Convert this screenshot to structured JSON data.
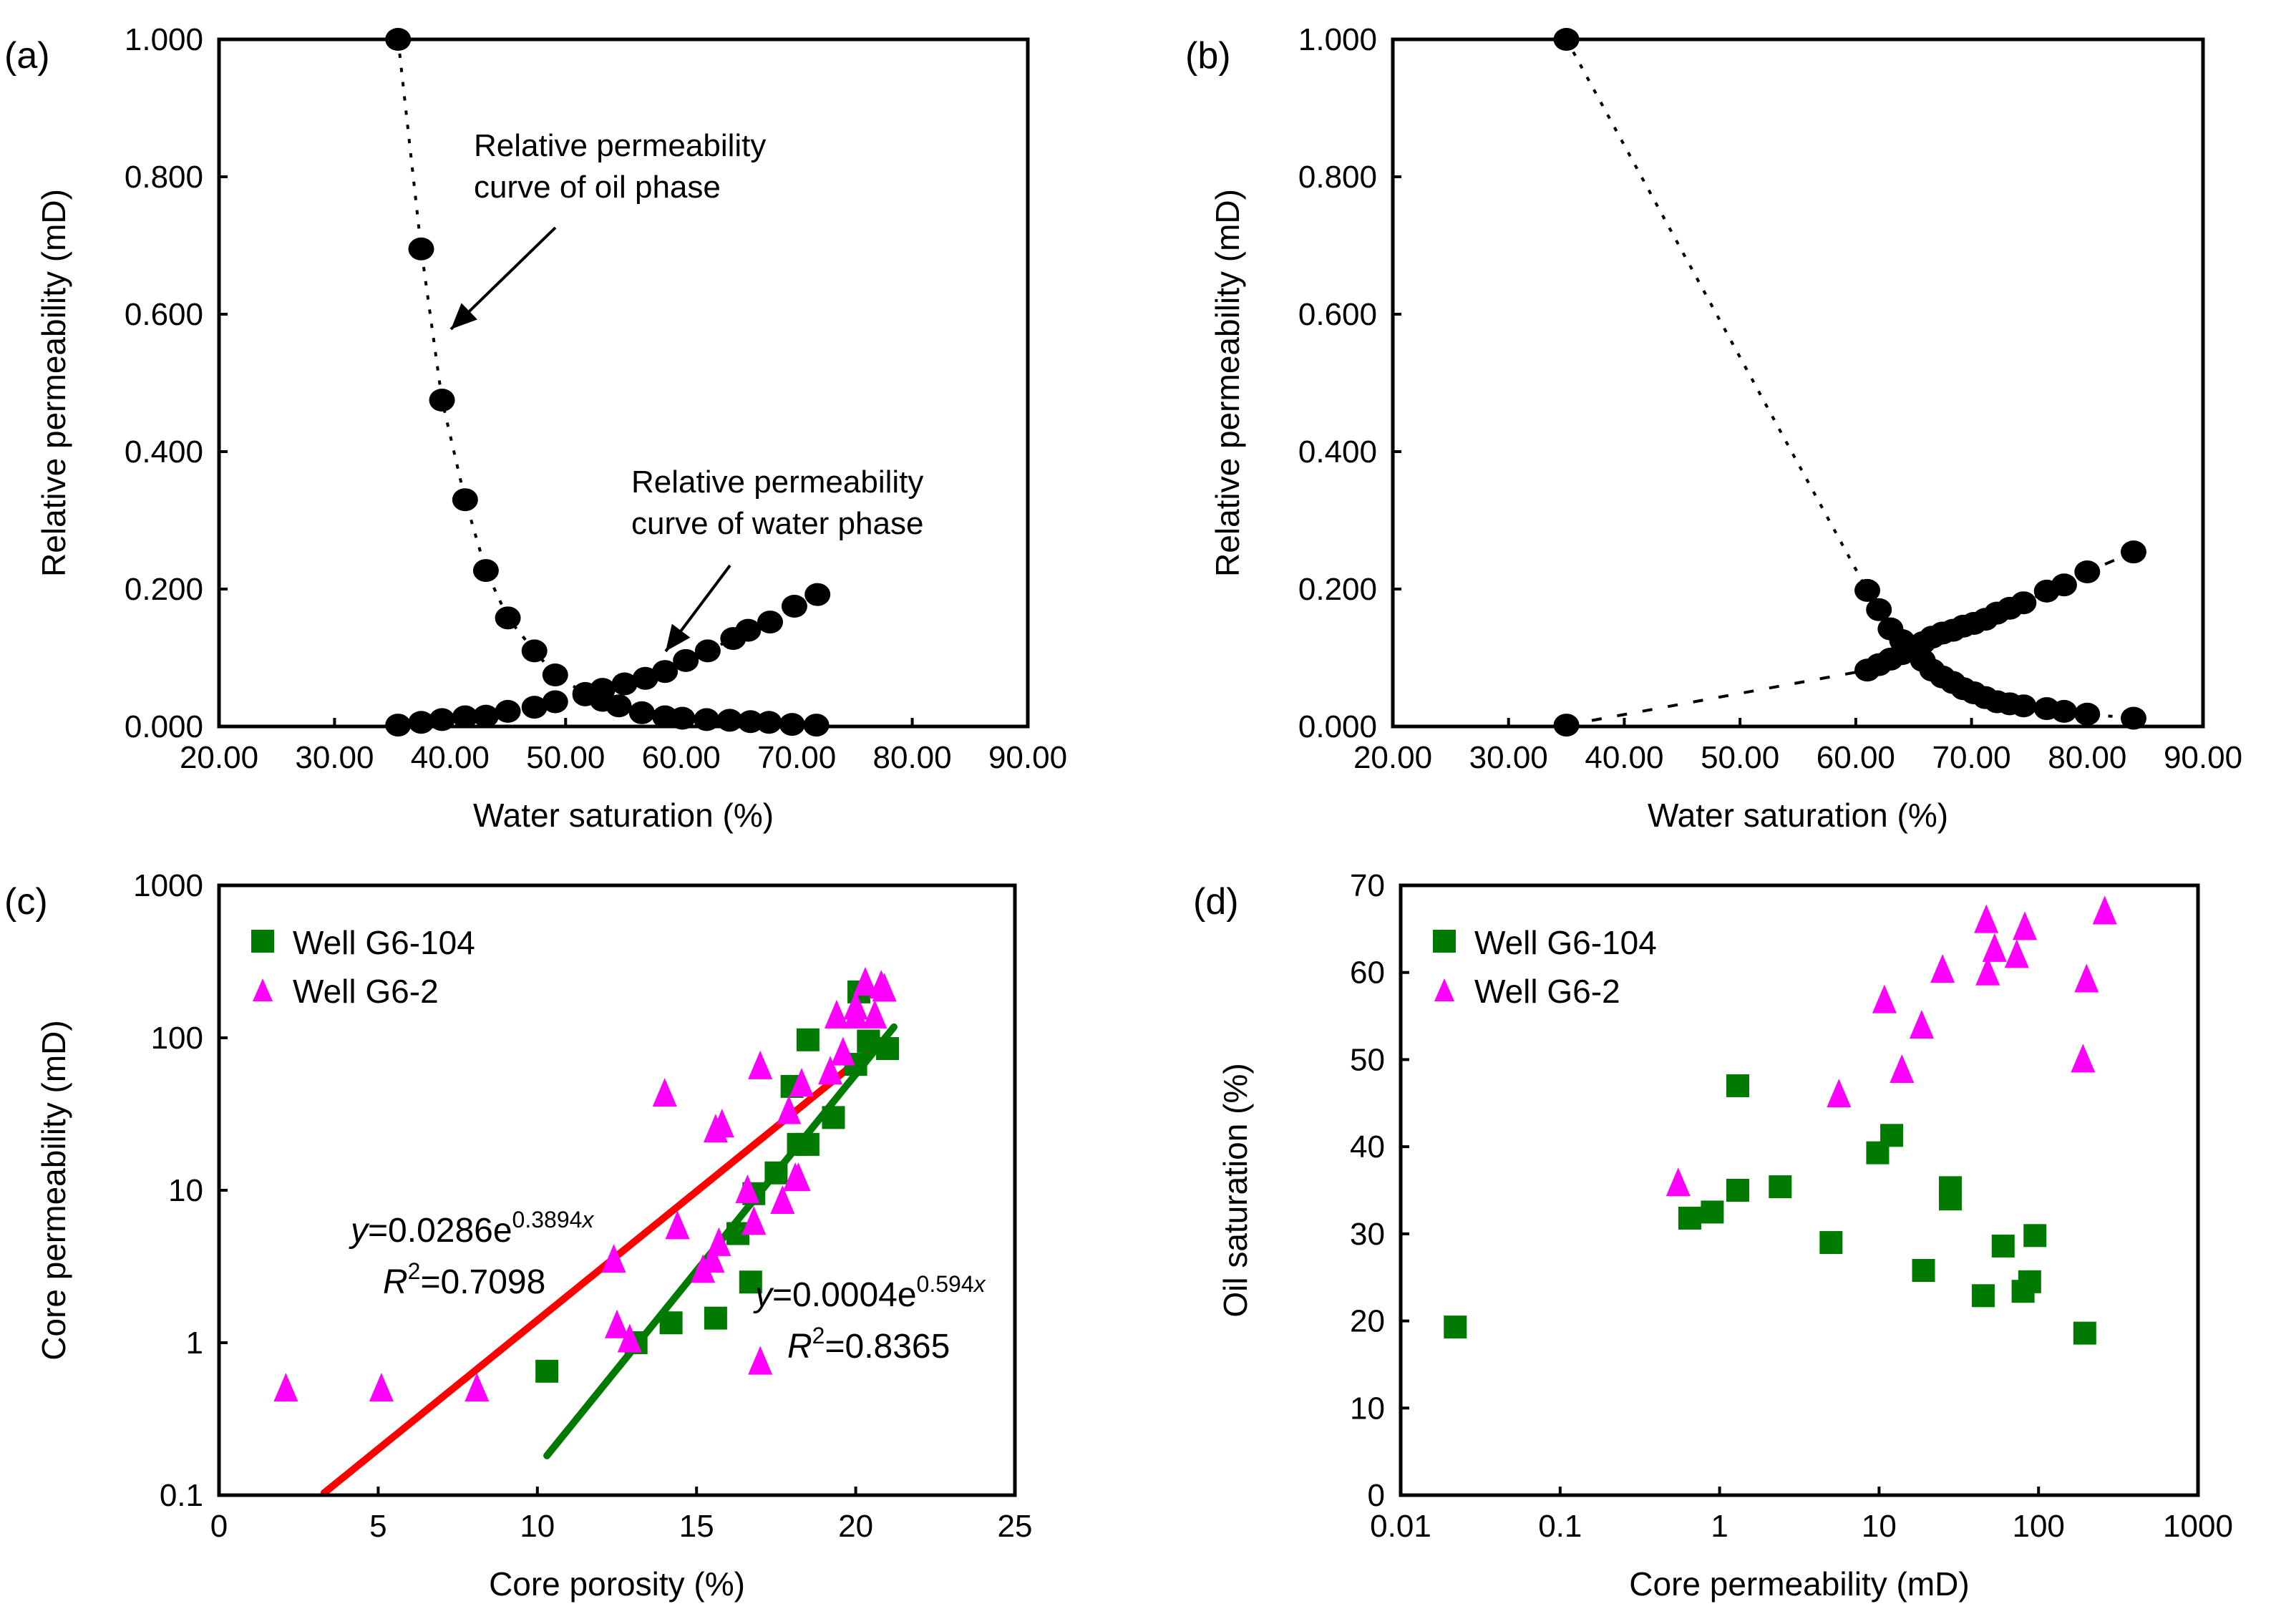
{
  "chart_data": [
    {
      "panel": "(a)",
      "type": "line",
      "xlabel": "Water saturation (%)",
      "ylabel": "Relative permeability (mD)",
      "xlim": [
        20,
        90
      ],
      "ylim": [
        0,
        1
      ],
      "xticks": [
        "20.00",
        "30.00",
        "40.00",
        "50.00",
        "60.00",
        "70.00",
        "80.00",
        "90.00"
      ],
      "yticks": [
        "0.000",
        "0.200",
        "0.400",
        "0.600",
        "0.800",
        "1.000"
      ],
      "grid": false,
      "series": [
        {
          "name": "Oil phase",
          "marker": "circle",
          "line": "dotted",
          "x": [
            35.5,
            37.5,
            39.3,
            41.3,
            43.1,
            45.0,
            47.3,
            49.1,
            51.7,
            53.2,
            54.6,
            56.6,
            58.6,
            60.1,
            62.2,
            64.2,
            66.0,
            67.6,
            69.6,
            71.7
          ],
          "y": [
            1.0,
            0.695,
            0.475,
            0.33,
            0.227,
            0.158,
            0.11,
            0.075,
            0.048,
            0.038,
            0.03,
            0.02,
            0.014,
            0.012,
            0.01,
            0.009,
            0.007,
            0.006,
            0.003,
            0.002
          ]
        },
        {
          "name": "Water phase",
          "marker": "circle",
          "line": "dashed",
          "x": [
            35.5,
            37.5,
            39.3,
            41.3,
            43.1,
            45.0,
            47.3,
            49.1,
            51.7,
            53.2,
            55.1,
            56.9,
            58.6,
            60.4,
            62.3,
            64.5,
            65.8,
            67.7,
            69.8,
            71.8
          ],
          "y": [
            0.002,
            0.006,
            0.01,
            0.014,
            0.015,
            0.022,
            0.028,
            0.036,
            0.046,
            0.054,
            0.062,
            0.07,
            0.08,
            0.096,
            0.11,
            0.128,
            0.14,
            0.152,
            0.175,
            0.192
          ]
        }
      ],
      "annotations": [
        {
          "text_lines": [
            "Relative permeability",
            "curve of oil phase"
          ],
          "points_to": "Oil phase"
        },
        {
          "text_lines": [
            "Relative permeability",
            "curve of water phase"
          ],
          "points_to": "Water phase"
        }
      ]
    },
    {
      "panel": "(b)",
      "type": "line",
      "xlabel": "Water saturation (%)",
      "ylabel": "Relative permeability (mD)",
      "xlim": [
        20,
        90
      ],
      "ylim": [
        0,
        1
      ],
      "xticks": [
        "20.00",
        "30.00",
        "40.00",
        "50.00",
        "60.00",
        "70.00",
        "80.00",
        "90.00"
      ],
      "yticks": [
        "0.000",
        "0.200",
        "0.400",
        "0.600",
        "0.800",
        "1.000"
      ],
      "grid": false,
      "series": [
        {
          "name": "Oil phase",
          "marker": "circle",
          "line": "dotted",
          "trend": "exponential",
          "x": [
            35.0,
            61.0,
            62.0,
            63.0,
            64.0,
            65.0,
            65.8,
            66.6,
            67.5,
            68.4,
            69.3,
            70.2,
            71.2,
            72.2,
            73.3,
            74.5,
            76.5,
            78.0,
            80.0,
            84.0
          ],
          "y": [
            1.0,
            0.198,
            0.17,
            0.142,
            0.125,
            0.112,
            0.096,
            0.082,
            0.072,
            0.064,
            0.055,
            0.049,
            0.042,
            0.036,
            0.033,
            0.03,
            0.026,
            0.022,
            0.018,
            0.012
          ]
        },
        {
          "name": "Water phase",
          "marker": "circle",
          "line": "dashed",
          "trend": "exponential",
          "x": [
            35.0,
            61.0,
            62.0,
            63.0,
            64.0,
            65.0,
            65.8,
            66.6,
            67.5,
            68.4,
            69.3,
            70.2,
            71.2,
            72.2,
            73.3,
            74.5,
            76.5,
            78.0,
            80.0,
            84.0
          ],
          "y": [
            0.002,
            0.082,
            0.09,
            0.098,
            0.106,
            0.114,
            0.122,
            0.13,
            0.136,
            0.14,
            0.146,
            0.15,
            0.156,
            0.165,
            0.172,
            0.18,
            0.197,
            0.206,
            0.225,
            0.254
          ]
        }
      ]
    },
    {
      "panel": "(c)",
      "type": "scatter",
      "xlabel": "Core porosity (%)",
      "ylabel": "Core permeability (mD)",
      "xlim": [
        0,
        25
      ],
      "ylim": [
        0.1,
        1000
      ],
      "yscale": "log",
      "xticks": [
        "0",
        "5",
        "10",
        "15",
        "20",
        "25"
      ],
      "yticks": [
        "0.1",
        "1",
        "10",
        "100",
        "1000"
      ],
      "grid": false,
      "legend": "top-left",
      "series": [
        {
          "name": "Well G6-104",
          "marker": "square",
          "color": "#007a00",
          "x": [
            10.3,
            13.1,
            14.2,
            15.6,
            16.3,
            16.7,
            16.8,
            17.5,
            18.0,
            18.2,
            18.5,
            18.5,
            19.3,
            20.0,
            20.1,
            20.4,
            20.4,
            21.0
          ],
          "y": [
            0.65,
            1.0,
            1.35,
            1.45,
            5.2,
            2.5,
            9.5,
            13.0,
            48.0,
            20.0,
            97.0,
            20.0,
            30.0,
            67.0,
            200.0,
            95.0,
            95.0,
            85.0
          ]
        },
        {
          "name": "Well G6-2",
          "marker": "triangle",
          "color": "#ff00ff",
          "x": [
            2.1,
            5.1,
            8.1,
            12.4,
            12.5,
            12.9,
            14.0,
            14.4,
            15.2,
            15.5,
            15.6,
            15.7,
            15.8,
            16.6,
            16.8,
            17.0,
            17.0,
            17.7,
            17.9,
            18.1,
            18.2,
            18.3,
            19.2,
            19.4,
            19.6,
            20.0,
            20.0,
            20.3,
            20.6,
            20.8,
            20.9
          ],
          "y": [
            0.5,
            0.5,
            0.5,
            3.5,
            1.3,
            1.05,
            43.0,
            5.8,
            3.0,
            3.5,
            25.0,
            4.5,
            27.0,
            10.0,
            6.2,
            0.75,
            65.0,
            8.5,
            33.0,
            12.0,
            12.0,
            50.0,
            60.0,
            140.0,
            80.0,
            160.0,
            140.0,
            230.0,
            140.0,
            220.0,
            210.0
          ]
        }
      ],
      "fits": [
        {
          "series": "Well G6-2",
          "color": "#ff0000",
          "equation": "y=0.0286e^(0.3894x)",
          "eq_prefix": "y",
          "eq_body": "=0.0286e",
          "eq_exp": "0.3894",
          "eq_var": "x",
          "r2_label": "R",
          "r2_value": "=0.7098",
          "a": 0.0286,
          "b": 0.3894,
          "x_range": [
            3.0,
            20.9
          ]
        },
        {
          "series": "Well G6-104",
          "color": "#007a00",
          "equation": "y=0.0004e^(0.594x)",
          "eq_prefix": "y",
          "eq_body": "=0.0004e",
          "eq_exp": "0.594",
          "eq_var": "x",
          "r2_label": "R",
          "r2_value": "=0.8365",
          "a": 0.0004,
          "b": 0.594,
          "x_range": [
            10.3,
            21.2
          ]
        }
      ]
    },
    {
      "panel": "(d)",
      "type": "scatter",
      "xlabel": "Core permeability (mD)",
      "ylabel": "Oil saturation (%)",
      "xlim": [
        0.01,
        1000
      ],
      "xscale": "log",
      "ylim": [
        0,
        70
      ],
      "xticks": [
        "0.01",
        "0.1",
        "1",
        "10",
        "100",
        "1000"
      ],
      "yticks": [
        "0",
        "10",
        "20",
        "30",
        "40",
        "50",
        "60",
        "70"
      ],
      "grid": false,
      "legend": "top-left",
      "series": [
        {
          "name": "Well G6-104",
          "marker": "square",
          "color": "#007a00",
          "x": [
            0.022,
            0.65,
            0.9,
            1.3,
            1.3,
            2.4,
            5.0,
            9.8,
            12.0,
            19.0,
            28.0,
            28.0,
            45.0,
            60.0,
            80.0,
            88.0,
            95.0,
            195.0
          ],
          "y": [
            19.3,
            31.8,
            32.5,
            35.0,
            47.0,
            35.4,
            29.0,
            39.3,
            41.3,
            25.8,
            35.3,
            34.0,
            22.9,
            28.6,
            23.4,
            24.5,
            29.8,
            18.6
          ]
        },
        {
          "name": "Well G6-2",
          "marker": "triangle",
          "color": "#ff00ff",
          "x": [
            0.55,
            5.6,
            10.8,
            13.9,
            18.5,
            25.0,
            47.0,
            48.0,
            53.0,
            73.0,
            82.0,
            190.0,
            200.0,
            260.0
          ],
          "y": [
            35.8,
            46.0,
            56.8,
            48.8,
            53.9,
            60.3,
            66.0,
            60.0,
            62.7,
            62.0,
            65.2,
            50.0,
            59.2,
            67.0
          ]
        }
      ]
    }
  ]
}
